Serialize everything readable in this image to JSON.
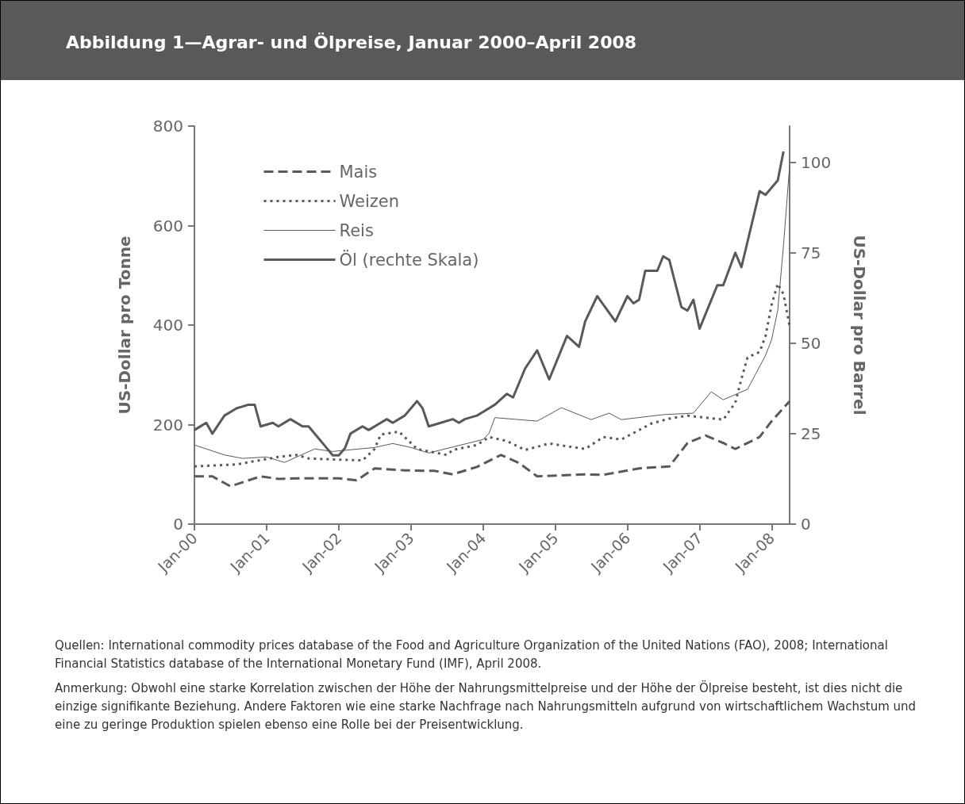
{
  "chart_data": {
    "type": "line",
    "title": "Abbildung 1—Agrar- und Ölpreise, Januar 2000–April 2008",
    "ylabel": "US-Dollar pro Tonne",
    "y2label": "US-Dollar pro Barrel",
    "xlim": [
      "2000-01",
      "2008-04"
    ],
    "xticks": [
      {
        "value": "2000-01",
        "label": "Jan-00"
      },
      {
        "value": "2001-01",
        "label": "Jan-01"
      },
      {
        "value": "2002-01",
        "label": "Jan-02"
      },
      {
        "value": "2003-01",
        "label": "Jan-03"
      },
      {
        "value": "2004-01",
        "label": "Jan-04"
      },
      {
        "value": "2005-01",
        "label": "Jan-05"
      },
      {
        "value": "2006-01",
        "label": "Jan-06"
      },
      {
        "value": "2007-01",
        "label": "Jan-07"
      },
      {
        "value": "2008-01",
        "label": "Jan-08"
      }
    ],
    "ylim": [
      0,
      800
    ],
    "yticks": [
      0,
      200,
      400,
      600,
      800
    ],
    "y2lim": [
      0,
      110
    ],
    "y2ticks": [
      0,
      25,
      50,
      75,
      100
    ],
    "grid": false,
    "legend": "top left",
    "marker": "none",
    "series": [
      {
        "name": "Mais",
        "color": "#595959",
        "line_style": "dashed",
        "x": [
          "2000-01",
          "2000-04",
          "2000-07",
          "2000-12",
          "2001-03",
          "2001-07",
          "2002-01",
          "2002-04",
          "2002-07",
          "2002-12",
          "2003-05",
          "2003-08",
          "2003-12",
          "2004-04",
          "2004-07",
          "2004-10",
          "2005-06",
          "2005-09",
          "2006-03",
          "2006-08",
          "2006-11",
          "2007-02",
          "2007-05",
          "2007-07",
          "2007-11",
          "2008-01",
          "2008-04"
        ],
        "values": [
          96,
          96,
          76,
          96,
          91,
          92,
          92,
          88,
          112,
          108,
          107,
          100,
          115,
          139,
          123,
          96,
          100,
          99,
          112,
          116,
          163,
          178,
          163,
          151,
          175,
          207,
          247
        ]
      },
      {
        "name": "Weizen",
        "color": "#595959",
        "line_style": "dotted",
        "x": [
          "2000-01",
          "2000-08",
          "2001-03",
          "2001-06",
          "2001-08",
          "2001-12",
          "2002-05",
          "2002-07",
          "2002-08",
          "2002-11",
          "2003-02",
          "2003-07",
          "2003-08",
          "2003-12",
          "2004-02",
          "2004-05",
          "2004-08",
          "2004-12",
          "2005-06",
          "2005-09",
          "2005-12",
          "2006-05",
          "2006-08",
          "2006-11",
          "2007-05",
          "2007-07",
          "2007-08",
          "2007-09",
          "2007-11",
          "2007-12",
          "2008-01",
          "2008-02",
          "2008-03",
          "2008-04"
        ],
        "values": [
          116,
          120,
          135,
          139,
          132,
          130,
          128,
          151,
          180,
          186,
          151,
          139,
          149,
          159,
          175,
          167,
          149,
          162,
          151,
          175,
          170,
          202,
          212,
          218,
          210,
          244,
          292,
          335,
          346,
          378,
          441,
          483,
          462,
          398
        ]
      },
      {
        "name": "Reis",
        "color": "#595959",
        "line_style": "solid",
        "x": [
          "2000-01",
          "2000-06",
          "2000-09",
          "2001-01",
          "2001-04",
          "2001-09",
          "2001-12",
          "2002-07",
          "2002-10",
          "2003-01",
          "2003-04",
          "2003-08",
          "2004-01",
          "2004-02",
          "2004-03",
          "2004-10",
          "2005-02",
          "2005-07",
          "2005-10",
          "2005-12",
          "2006-07",
          "2006-12",
          "2007-03",
          "2007-05",
          "2007-09",
          "2007-12",
          "2008-01",
          "2008-02",
          "2008-03",
          "2008-04"
        ],
        "values": [
          159,
          139,
          132,
          135,
          124,
          151,
          146,
          154,
          162,
          154,
          143,
          155,
          170,
          183,
          214,
          207,
          234,
          210,
          223,
          210,
          220,
          223,
          266,
          250,
          271,
          339,
          371,
          430,
          560,
          720
        ]
      },
      {
        "name": "Öl (rechte Skala)",
        "color": "#595959",
        "line_style": "solid",
        "axis": "y2",
        "x": [
          "2000-01",
          "2000-03",
          "2000-04",
          "2000-06",
          "2000-08",
          "2000-10",
          "2000-11",
          "2000-12",
          "2001-02",
          "2001-03",
          "2001-05",
          "2001-07",
          "2001-08",
          "2001-09",
          "2001-11",
          "2001-12",
          "2002-01",
          "2002-02",
          "2002-03",
          "2002-05",
          "2002-06",
          "2002-08",
          "2002-09",
          "2002-10",
          "2002-12",
          "2003-02",
          "2003-03",
          "2003-04",
          "2003-06",
          "2003-08",
          "2003-09",
          "2003-10",
          "2003-12",
          "2004-01",
          "2004-03",
          "2004-05",
          "2004-06",
          "2004-08",
          "2004-10",
          "2004-12",
          "2005-03",
          "2005-05",
          "2005-06",
          "2005-08",
          "2005-11",
          "2006-01",
          "2006-02",
          "2006-03",
          "2006-04",
          "2006-06",
          "2006-07",
          "2006-08",
          "2006-10",
          "2006-11",
          "2006-12",
          "2007-01",
          "2007-04",
          "2007-05",
          "2007-07",
          "2007-08",
          "2007-11",
          "2007-12",
          "2008-02",
          "2008-03"
        ],
        "values": [
          26,
          28,
          25,
          30,
          32,
          33,
          33,
          27,
          28,
          27,
          29,
          27,
          27,
          25,
          21,
          19,
          19,
          21,
          25,
          27,
          26,
          28,
          29,
          28,
          30,
          34,
          32,
          27,
          28,
          29,
          28,
          29,
          30,
          31,
          33,
          36,
          35,
          43,
          48,
          40,
          52,
          49,
          56,
          63,
          56,
          63,
          61,
          62,
          70,
          70,
          74,
          73,
          60,
          59,
          62,
          54,
          66,
          66,
          75,
          71,
          92,
          91,
          95,
          103
        ]
      }
    ],
    "annotations": [
      "Quellen:  International commodity prices database of the Food and Agriculture Organization of the United Nations (FAO), 2008; International Financial Statistics database of the International Monetary Fund (IMF), April 2008.",
      "Anmerkung:  Obwohl eine starke Korrelation zwischen der Höhe der Nahrungsmittelpreise und der Höhe der Ölpreise besteht, ist dies nicht die einzige signifikante Beziehung. Andere Faktoren wie eine starke Nachfrage nach Nahrungsmitteln aufgrund von wirtschaftlichem Wachstum und eine zu geringe Produktion spielen ebenso eine Rolle bei der Preisentwicklung."
    ]
  }
}
